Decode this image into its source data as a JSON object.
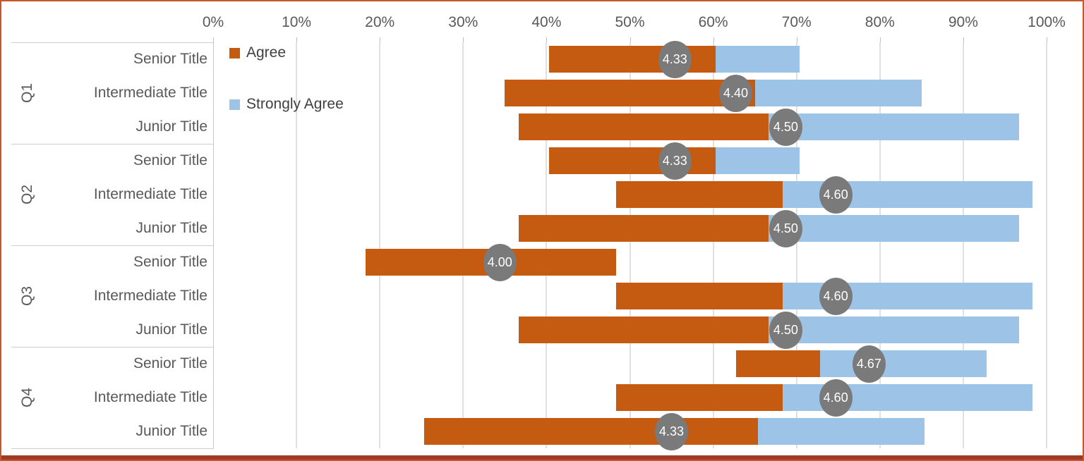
{
  "legend": {
    "items": [
      {
        "label": "Agree",
        "color": "#C55A11"
      },
      {
        "label": "Strongly Agree",
        "color": "#9DC3E6"
      }
    ]
  },
  "colors": {
    "agree": "#C55A11",
    "strongly_agree": "#9DC3E6",
    "marker": "#7A7A7A",
    "border_accent": "#C4582A",
    "bottom_accent": "#A03A24"
  },
  "chart_data": {
    "type": "bar",
    "orientation": "horizontal",
    "stacked": true,
    "legend_position": "top-left-inside",
    "grid": true,
    "axis": {
      "position": "top",
      "tick_labels": [
        "0%",
        "10%",
        "20%",
        "30%",
        "40%",
        "50%",
        "60%",
        "70%",
        "80%",
        "90%",
        "100%"
      ],
      "tick_values": [
        0,
        10,
        20,
        30,
        40,
        50,
        60,
        70,
        80,
        90,
        100
      ],
      "range": [
        0,
        100
      ]
    },
    "series_names": [
      "Agree",
      "Strongly Agree"
    ],
    "groups": [
      {
        "label": "Q1",
        "rows": [
          {
            "label": "Senior Title",
            "start_pct": 40.33,
            "agree_pct": 20,
            "strongly_agree_pct": 10,
            "average": "4.33",
            "marker_pct": 55.4
          },
          {
            "label": "Intermediate Title",
            "start_pct": 35.0,
            "agree_pct": 30,
            "strongly_agree_pct": 20,
            "average": "4.40",
            "marker_pct": 62.7
          },
          {
            "label": "Junior Title",
            "start_pct": 36.67,
            "agree_pct": 30,
            "strongly_agree_pct": 30,
            "average": "4.50",
            "marker_pct": 68.7
          }
        ]
      },
      {
        "label": "Q2",
        "rows": [
          {
            "label": "Senior Title",
            "start_pct": 40.33,
            "agree_pct": 20,
            "strongly_agree_pct": 10,
            "average": "4.33",
            "marker_pct": 55.4
          },
          {
            "label": "Intermediate Title",
            "start_pct": 48.33,
            "agree_pct": 20,
            "strongly_agree_pct": 30,
            "average": "4.60",
            "marker_pct": 74.7
          },
          {
            "label": "Junior Title",
            "start_pct": 36.67,
            "agree_pct": 30,
            "strongly_agree_pct": 30,
            "average": "4.50",
            "marker_pct": 68.7
          }
        ]
      },
      {
        "label": "Q3",
        "rows": [
          {
            "label": "Senior Title",
            "start_pct": 18.33,
            "agree_pct": 30,
            "strongly_agree_pct": 0,
            "average": "4.00",
            "marker_pct": 34.4
          },
          {
            "label": "Intermediate Title",
            "start_pct": 48.33,
            "agree_pct": 20,
            "strongly_agree_pct": 30,
            "average": "4.60",
            "marker_pct": 74.7
          },
          {
            "label": "Junior Title",
            "start_pct": 36.67,
            "agree_pct": 30,
            "strongly_agree_pct": 30,
            "average": "4.50",
            "marker_pct": 68.7
          }
        ]
      },
      {
        "label": "Q4",
        "rows": [
          {
            "label": "Senior Title",
            "start_pct": 62.78,
            "agree_pct": 10,
            "strongly_agree_pct": 20,
            "average": "4.67",
            "marker_pct": 78.7
          },
          {
            "label": "Intermediate Title",
            "start_pct": 48.33,
            "agree_pct": 20,
            "strongly_agree_pct": 30,
            "average": "4.60",
            "marker_pct": 74.7
          },
          {
            "label": "Junior Title",
            "start_pct": 25.33,
            "agree_pct": 40,
            "strongly_agree_pct": 20,
            "average": "4.33",
            "marker_pct": 55.0
          }
        ]
      }
    ]
  }
}
